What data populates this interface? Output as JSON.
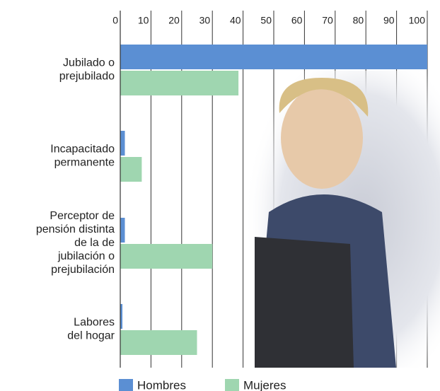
{
  "chart_data": {
    "type": "bar",
    "orientation": "horizontal",
    "categories": [
      [
        "Jubilado o",
        "prejubilado"
      ],
      [
        "Incapacitado",
        "permanente"
      ],
      [
        "Perceptor de",
        "pensión distinta",
        "de la de",
        "jubilación o",
        "prejubilación"
      ],
      [
        "Labores",
        "del hogar"
      ]
    ],
    "series": [
      {
        "name": "Hombres",
        "color": "#5b8fd3",
        "values": [
          100,
          1.5,
          1.5,
          0.7
        ]
      },
      {
        "name": "Mujeres",
        "color": "#9fd6b0",
        "values": [
          38.5,
          7,
          30,
          25
        ]
      }
    ],
    "xlim": [
      0,
      100
    ],
    "xticks": [
      0,
      10,
      20,
      30,
      40,
      50,
      60,
      70,
      80,
      90,
      100
    ],
    "grid": true,
    "legend": "bottom"
  }
}
